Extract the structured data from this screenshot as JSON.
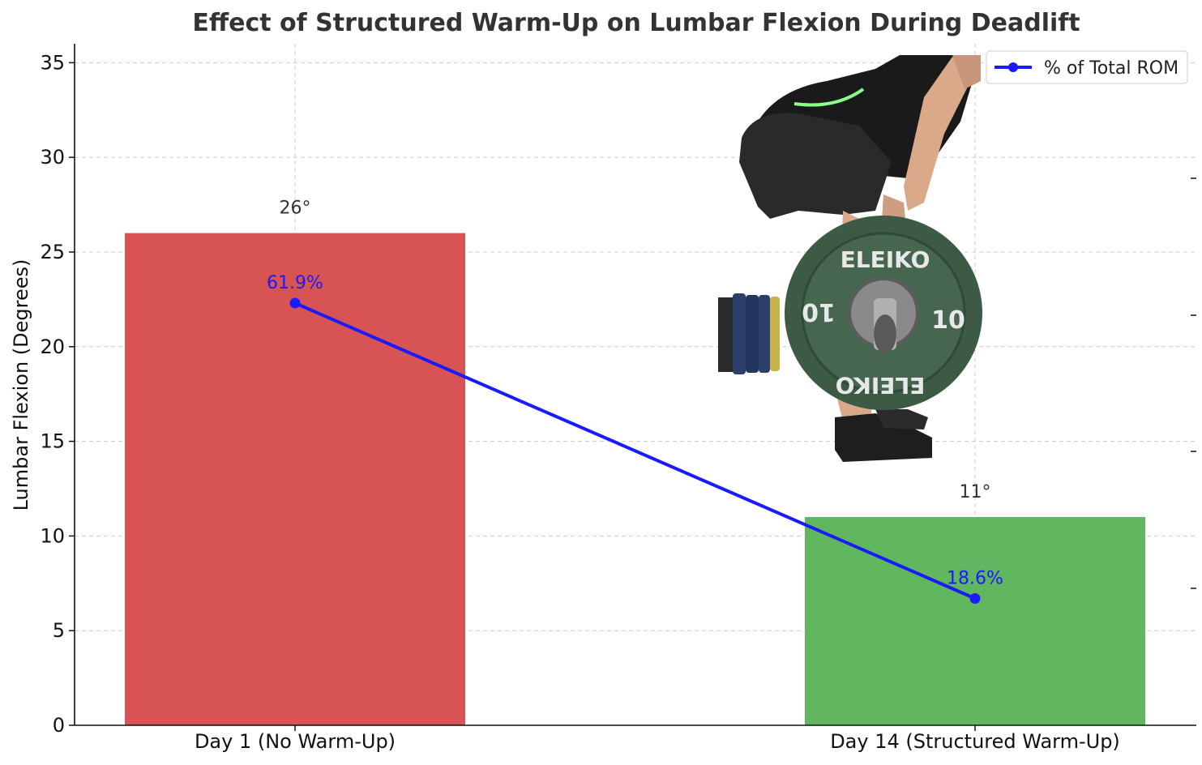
{
  "chart_data": {
    "type": "bar",
    "title": "Effect of Structured Warm-Up on Lumbar Flexion During Deadlift",
    "xlabel": "",
    "ylabel": "Lumbar Flexion (Degrees)",
    "categories": [
      "Day 1 (No Warm-Up)",
      "Day 14 (Structured Warm-Up)"
    ],
    "values": [
      26,
      11
    ],
    "value_labels": [
      "26°",
      "11°"
    ],
    "bar_colors": [
      "#d85353",
      "#60b760"
    ],
    "ylim": [
      0,
      36
    ],
    "yticks": [
      0,
      5,
      10,
      15,
      20,
      25,
      30,
      35
    ],
    "ytick_labels": [
      "0",
      "5",
      "10",
      "15",
      "20",
      "25",
      "30",
      "35"
    ],
    "grid": true,
    "line_series": {
      "name": "% of Total ROM",
      "values": [
        22.3,
        6.7
      ],
      "point_labels": [
        "61.9%",
        "18.6%"
      ],
      "color": "#1a1aff"
    },
    "legend": {
      "position": "top-right",
      "entries": [
        "% of Total ROM"
      ]
    },
    "inset_image": {
      "description_icon": "deadlift-photo-icon",
      "plate_text": [
        "ELEIKO",
        "10",
        "10",
        "ELEIKO"
      ]
    }
  }
}
